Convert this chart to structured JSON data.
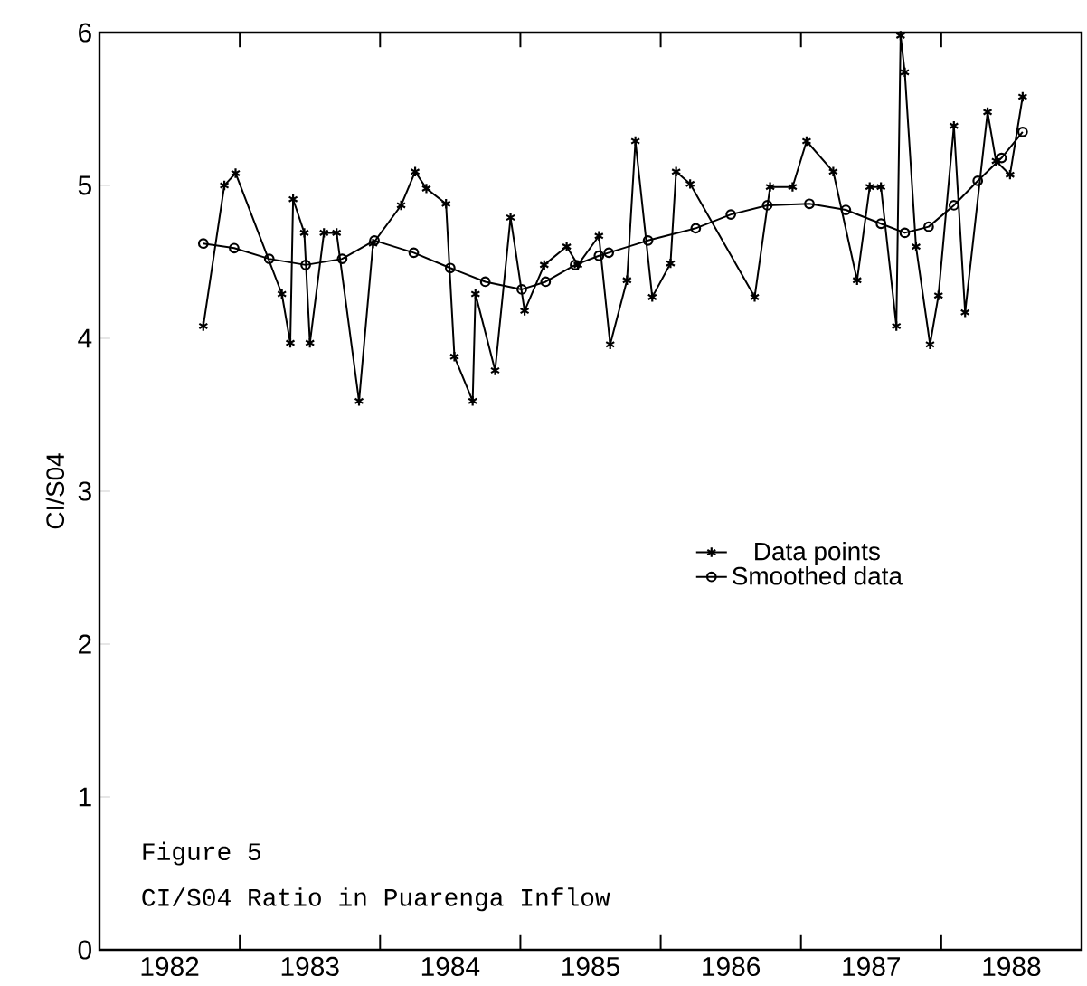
{
  "chart_data": {
    "type": "line",
    "ylabel": "CI/S04",
    "xlim": [
      1982,
      1989
    ],
    "ylim": [
      0,
      6
    ],
    "yticks": [
      0,
      1,
      2,
      3,
      4,
      5,
      6
    ],
    "xticks": [
      {
        "value": 1982.5,
        "label": "1982"
      },
      {
        "value": 1983.5,
        "label": "1983"
      },
      {
        "value": 1984.5,
        "label": "1984"
      },
      {
        "value": 1985.5,
        "label": "1985"
      },
      {
        "value": 1986.5,
        "label": "1986"
      },
      {
        "value": 1987.5,
        "label": "1987"
      },
      {
        "value": 1988.5,
        "label": "1988"
      },
      {
        "value": 1983,
        "label": null
      },
      {
        "value": 1984,
        "label": null
      },
      {
        "value": 1985,
        "label": null
      },
      {
        "value": 1986,
        "label": null
      },
      {
        "value": 1987,
        "label": null
      },
      {
        "value": 1988,
        "label": null
      }
    ],
    "grid": false,
    "legend": "right",
    "line_style": "solid",
    "annotations": [
      "Figure 5",
      "CI/S04 Ratio in Puarenga Inflow"
    ],
    "series": [
      {
        "name": "Data points",
        "color": "#000000",
        "marker": "cross",
        "x": [
          1982.74,
          1982.89,
          1982.97,
          1983.3,
          1983.36,
          1983.38,
          1983.46,
          1983.5,
          1983.6,
          1983.69,
          1983.85,
          1983.95,
          1984.15,
          1984.25,
          1984.33,
          1984.47,
          1984.53,
          1984.66,
          1984.68,
          1984.82,
          1984.93,
          1985.03,
          1985.17,
          1985.33,
          1985.41,
          1985.56,
          1985.64,
          1985.76,
          1985.82,
          1985.94,
          1986.07,
          1986.11,
          1986.21,
          1986.67,
          1986.78,
          1986.94,
          1987.04,
          1987.23,
          1987.4,
          1987.49,
          1987.57,
          1987.68,
          1987.71,
          1987.74,
          1987.82,
          1987.92,
          1987.98,
          1988.09,
          1988.17,
          1988.33,
          1988.39,
          1988.49,
          1988.58
        ],
        "values": [
          4.08,
          5.0,
          5.08,
          4.29,
          3.97,
          4.91,
          4.69,
          3.97,
          4.69,
          4.69,
          3.59,
          4.62,
          4.87,
          5.09,
          4.98,
          4.88,
          3.88,
          3.59,
          4.29,
          3.79,
          4.79,
          4.18,
          4.48,
          4.6,
          4.48,
          4.67,
          3.96,
          4.38,
          5.29,
          4.27,
          4.49,
          5.09,
          5.01,
          4.27,
          4.99,
          4.99,
          5.29,
          5.09,
          4.38,
          4.99,
          4.99,
          4.08,
          5.98,
          5.74,
          4.6,
          3.96,
          4.28,
          5.39,
          4.17,
          5.48,
          5.16,
          5.07,
          5.58
        ]
      },
      {
        "name": "Smoothed data",
        "color": "#000000",
        "marker": "circle",
        "x": [
          1982.74,
          1982.96,
          1983.21,
          1983.47,
          1983.73,
          1983.96,
          1984.24,
          1984.5,
          1984.75,
          1985.01,
          1985.18,
          1985.39,
          1985.56,
          1985.63,
          1985.91,
          1986.25,
          1986.5,
          1986.76,
          1987.06,
          1987.32,
          1987.57,
          1987.74,
          1987.91,
          1988.09,
          1988.26,
          1988.43,
          1988.58
        ],
        "values": [
          4.62,
          4.59,
          4.52,
          4.48,
          4.52,
          4.64,
          4.56,
          4.46,
          4.37,
          4.32,
          4.37,
          4.48,
          4.54,
          4.56,
          4.64,
          4.72,
          4.81,
          4.87,
          4.88,
          4.84,
          4.75,
          4.69,
          4.73,
          4.87,
          5.03,
          5.18,
          5.35
        ]
      }
    ]
  }
}
